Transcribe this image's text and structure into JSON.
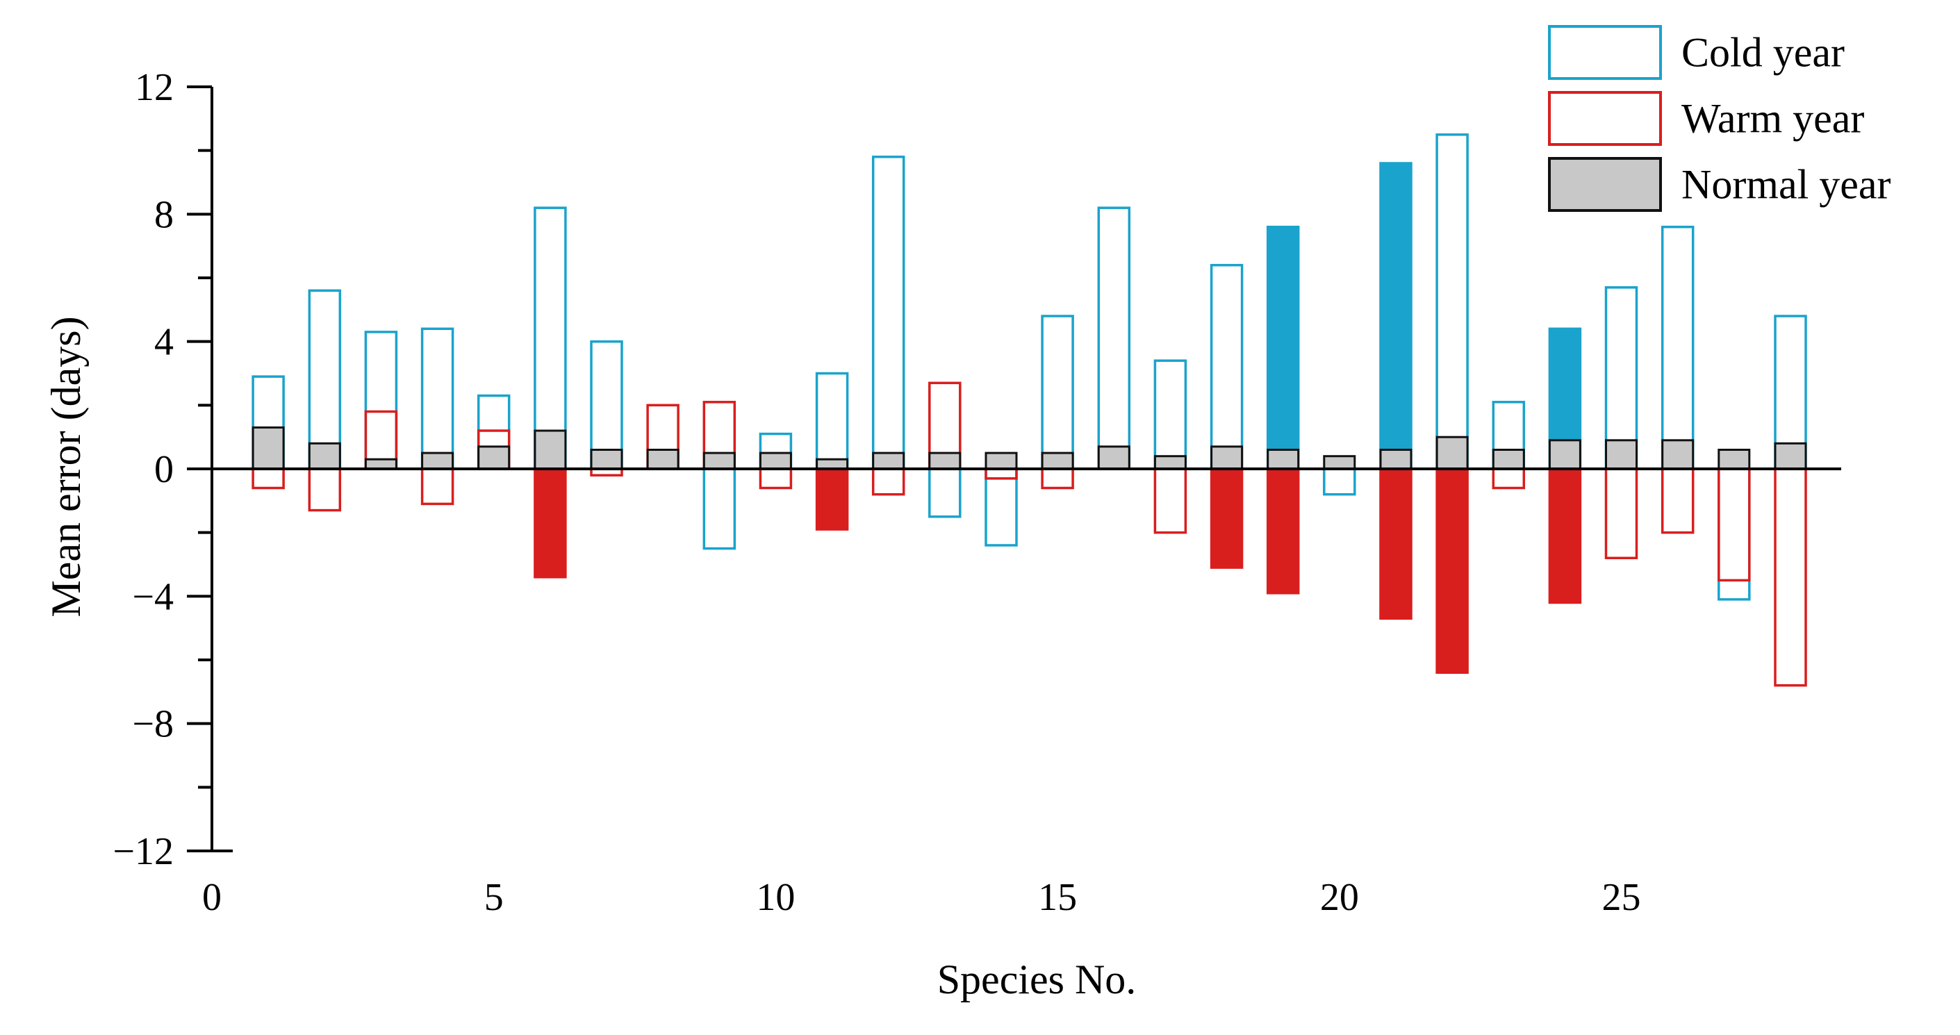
{
  "chart_data": {
    "type": "bar",
    "title": "",
    "xlabel": "Species No.",
    "ylabel": "Mean error (days)",
    "xlim": [
      0,
      28.9
    ],
    "ylim": [
      -12,
      12
    ],
    "xticks": [
      0,
      5,
      10,
      15,
      20,
      25
    ],
    "yticks": [
      -12,
      -8,
      -4,
      0,
      4,
      8,
      12
    ],
    "ytick_labels": [
      "−12",
      "−8",
      "−4",
      "0",
      "4",
      "8",
      "12"
    ],
    "grid": false,
    "legend_position": "top-right",
    "categories": [
      1,
      2,
      3,
      4,
      5,
      6,
      7,
      8,
      9,
      10,
      11,
      12,
      13,
      14,
      15,
      16,
      17,
      18,
      19,
      20,
      21,
      22,
      23,
      24,
      25,
      26,
      27,
      28
    ],
    "series": [
      {
        "name": "Cold year",
        "color": "#1aa3cc",
        "values": [
          2.9,
          5.6,
          4.3,
          4.4,
          2.3,
          8.2,
          4.0,
          0,
          -2.5,
          1.1,
          3.0,
          9.8,
          -1.5,
          -2.4,
          4.8,
          8.2,
          3.4,
          6.4,
          7.6,
          -0.8,
          9.6,
          10.5,
          2.1,
          4.4,
          5.7,
          7.6,
          -4.1,
          4.8
        ],
        "filled": [
          false,
          false,
          false,
          false,
          false,
          false,
          false,
          false,
          false,
          false,
          false,
          false,
          false,
          false,
          false,
          false,
          false,
          false,
          true,
          false,
          true,
          false,
          false,
          true,
          false,
          false,
          false,
          false
        ]
      },
      {
        "name": "Warm year",
        "color": "#d91e1e",
        "values": [
          -0.6,
          -1.3,
          1.8,
          -1.1,
          1.2,
          -3.4,
          -0.2,
          2.0,
          2.1,
          -0.6,
          -1.9,
          -0.8,
          2.7,
          -0.3,
          -0.6,
          0,
          -2.0,
          -3.1,
          -3.9,
          0,
          -4.7,
          -6.4,
          -0.6,
          -4.2,
          -2.8,
          -2.0,
          -3.5,
          -6.8
        ],
        "filled": [
          false,
          false,
          false,
          false,
          false,
          true,
          false,
          false,
          false,
          false,
          true,
          false,
          false,
          false,
          false,
          false,
          false,
          true,
          true,
          false,
          true,
          true,
          false,
          true,
          false,
          false,
          false,
          false
        ]
      },
      {
        "name": "Normal year",
        "color": "#c8c8c8",
        "values": [
          1.3,
          0.8,
          0.3,
          0.5,
          0.7,
          1.2,
          0.6,
          0.6,
          0.5,
          0.5,
          0.3,
          0.5,
          0.5,
          0.5,
          0.5,
          0.7,
          0.4,
          0.7,
          0.6,
          0.4,
          0.6,
          1.0,
          0.6,
          0.9,
          0.9,
          0.9,
          0.6,
          0.8
        ]
      }
    ]
  }
}
